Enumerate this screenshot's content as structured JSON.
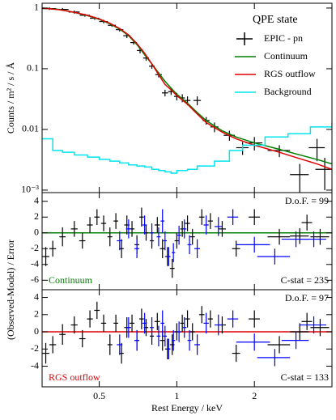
{
  "chart_data": [
    {
      "type": "spectrum",
      "title": "QPE state",
      "ylabel": "Counts / m² / s / Å",
      "xscale": "log",
      "yscale": "log",
      "xlim": [
        0.3,
        4.0
      ],
      "ylim": [
        0.00091,
        1.2
      ],
      "yticks": [
        {
          "value": 1,
          "label": "1"
        },
        {
          "value": 0.1,
          "label": "0.1"
        },
        {
          "value": 0.01,
          "label": "0.01"
        },
        {
          "value": 0.001,
          "label": "10⁻³"
        }
      ],
      "series": [
        {
          "name": "EPIC - pn",
          "kind": "errorbar",
          "color": "#000000",
          "x": [
            0.32,
            0.36,
            0.4,
            0.44,
            0.48,
            0.52,
            0.56,
            0.6,
            0.64,
            0.68,
            0.72,
            0.76,
            0.8,
            0.85,
            0.9,
            0.95,
            1.0,
            1.05,
            1.1,
            1.2,
            1.3,
            1.4,
            1.6,
            1.8,
            2.0,
            2.5,
            3.0,
            3.5,
            3.75
          ],
          "values": [
            0.98,
            0.95,
            0.86,
            0.76,
            0.68,
            0.6,
            0.52,
            0.44,
            0.35,
            0.27,
            0.2,
            0.15,
            0.11,
            0.08,
            0.04,
            0.042,
            0.035,
            0.033,
            0.03,
            0.03,
            0.014,
            0.011,
            0.008,
            0.005,
            0.006,
            0.0045,
            0.0018,
            0.005,
            0.0022
          ],
          "xerr": [
            0.02,
            0.02,
            0.02,
            0.02,
            0.02,
            0.02,
            0.02,
            0.02,
            0.02,
            0.02,
            0.02,
            0.02,
            0.02,
            0.025,
            0.025,
            0.025,
            0.025,
            0.025,
            0.03,
            0.04,
            0.04,
            0.05,
            0.08,
            0.1,
            0.15,
            0.25,
            0.25,
            0.25,
            0.3
          ],
          "yerr": [
            0.05,
            0.05,
            0.05,
            0.04,
            0.04,
            0.04,
            0.03,
            0.03,
            0.03,
            0.02,
            0.02,
            0.015,
            0.01,
            0.008,
            0.005,
            0.005,
            0.005,
            0.005,
            0.005,
            0.005,
            0.002,
            0.002,
            0.0015,
            0.0012,
            0.0015,
            0.001,
            0.0009,
            0.002,
            0.0012
          ]
        },
        {
          "name": "Continuum",
          "kind": "line",
          "color": "#008000",
          "x": [
            0.3,
            0.35,
            0.4,
            0.45,
            0.5,
            0.55,
            0.6,
            0.65,
            0.7,
            0.75,
            0.8,
            0.85,
            0.9,
            0.95,
            1.0,
            1.1,
            1.2,
            1.3,
            1.5,
            1.7,
            2.0,
            2.5,
            3.0,
            3.5,
            4.0
          ],
          "values": [
            1.0,
            0.95,
            0.85,
            0.75,
            0.65,
            0.55,
            0.45,
            0.35,
            0.25,
            0.17,
            0.12,
            0.085,
            0.062,
            0.048,
            0.038,
            0.027,
            0.019,
            0.014,
            0.0095,
            0.0075,
            0.006,
            0.0047,
            0.0038,
            0.0032,
            0.0027
          ]
        },
        {
          "name": "RGS outflow",
          "kind": "line",
          "color": "#e00000",
          "x": [
            0.3,
            0.35,
            0.4,
            0.45,
            0.5,
            0.55,
            0.6,
            0.65,
            0.7,
            0.75,
            0.8,
            0.85,
            0.9,
            0.95,
            1.0,
            1.1,
            1.2,
            1.3,
            1.5,
            1.7,
            2.0,
            2.5,
            3.0,
            3.5,
            4.0
          ],
          "values": [
            1.0,
            0.94,
            0.85,
            0.76,
            0.66,
            0.56,
            0.46,
            0.36,
            0.26,
            0.18,
            0.12,
            0.08,
            0.055,
            0.045,
            0.036,
            0.026,
            0.018,
            0.013,
            0.009,
            0.007,
            0.0055,
            0.0042,
            0.0033,
            0.0027,
            0.0022
          ]
        },
        {
          "name": "Background",
          "kind": "step",
          "color": "#00e5ee",
          "x": [
            0.3,
            0.33,
            0.36,
            0.4,
            0.45,
            0.5,
            0.55,
            0.6,
            0.65,
            0.7,
            0.75,
            0.8,
            0.85,
            0.9,
            0.95,
            1.0,
            1.1,
            1.2,
            1.4,
            1.6,
            1.8,
            2.2,
            2.7,
            3.3,
            4.0
          ],
          "values": [
            0.007,
            0.0045,
            0.0042,
            0.0038,
            0.0035,
            0.0032,
            0.003,
            0.0028,
            0.0026,
            0.0025,
            0.0024,
            0.0022,
            0.0021,
            0.002,
            0.0019,
            0.0021,
            0.0022,
            0.0025,
            0.003,
            0.0045,
            0.0055,
            0.0075,
            0.0085,
            0.011,
            0.013
          ]
        }
      ]
    },
    {
      "type": "residual",
      "ylabel": "(Observed-Model) / Error",
      "xscale": "log",
      "xlim": [
        0.3,
        4.0
      ],
      "ylim": [
        -7.2,
        5.1
      ],
      "yticks": [
        4,
        2,
        0,
        -2,
        -4,
        -6
      ],
      "line_color": "#008000",
      "label": "Continuum",
      "label_color": "#008000",
      "dof": "D.o.F. = 99",
      "cstat": "C-stat = 235",
      "series": [
        {
          "color": "#000000",
          "x": [
            0.31,
            0.33,
            0.36,
            0.4,
            0.43,
            0.46,
            0.49,
            0.52,
            0.55,
            0.58,
            0.61,
            0.64,
            0.67,
            0.7,
            0.73,
            0.76,
            0.8,
            0.84,
            0.88,
            0.92,
            0.96,
            1.0,
            1.05,
            1.1,
            1.15,
            1.25,
            1.35,
            1.5,
            1.7,
            2.0,
            2.5,
            3.0,
            3.2,
            3.6
          ],
          "values": [
            -3,
            -2,
            -0.5,
            0.5,
            -1,
            1,
            2,
            1.2,
            -0.5,
            1.5,
            -2,
            1,
            0.5,
            -1.5,
            2,
            0,
            -1,
            1,
            -2,
            -3,
            -4.5,
            -1,
            0.5,
            1.2,
            -0.5,
            2,
            1.5,
            0.5,
            -2,
            2,
            -0.5,
            -0.4,
            1.3,
            -0.5
          ],
          "err": [
            1.2,
            1,
            1.2,
            1,
            1,
            1,
            1,
            1,
            1.2,
            1,
            1.2,
            1.2,
            1,
            1.2,
            1.2,
            1,
            1,
            1,
            1.2,
            1.2,
            1.2,
            1,
            1,
            1,
            1,
            1,
            1,
            1,
            1,
            1,
            1,
            1,
            1,
            1
          ],
          "xerr": [
            0.01,
            0.01,
            0.01,
            0.012,
            0.012,
            0.012,
            0.012,
            0.012,
            0.012,
            0.012,
            0.012,
            0.015,
            0.015,
            0.015,
            0.015,
            0.015,
            0.015,
            0.02,
            0.02,
            0.02,
            0.02,
            0.02,
            0.02,
            0.025,
            0.025,
            0.03,
            0.03,
            0.05,
            0.06,
            0.1,
            0.25,
            0.25,
            0.15,
            0.3
          ]
        },
        {
          "color": "#0000ff",
          "x": [
            0.6,
            0.65,
            0.7,
            0.75,
            0.8,
            0.85,
            0.88,
            0.9,
            0.93,
            0.97,
            1.02,
            1.07,
            1.12,
            1.2,
            1.3,
            1.45,
            1.65,
            2.0,
            2.4,
            2.9,
            3.4
          ],
          "values": [
            -1,
            0.5,
            -2,
            1,
            0,
            -0.5,
            1.5,
            -1,
            -3,
            -2.5,
            -0.3,
            0.5,
            -1.5,
            -2,
            1,
            0.8,
            2,
            -1.5,
            -3,
            -0.8,
            -0.8
          ],
          "err": [
            1.2,
            1.2,
            1.2,
            1.2,
            1.2,
            1.2,
            1.5,
            1.2,
            1.2,
            1.2,
            1.2,
            1.2,
            1.2,
            1.2,
            1.2,
            1.2,
            1,
            1,
            1,
            1,
            1
          ],
          "xerr": [
            0.015,
            0.015,
            0.015,
            0.015,
            0.015,
            0.015,
            0.015,
            0.015,
            0.015,
            0.015,
            0.02,
            0.02,
            0.02,
            0.03,
            0.03,
            0.05,
            0.08,
            0.3,
            0.35,
            0.35,
            0.4
          ]
        }
      ]
    },
    {
      "type": "residual",
      "xlabel": "Rest Energy / keV",
      "xscale": "log",
      "xlim": [
        0.3,
        4.0
      ],
      "ylim": [
        -6.4,
        4.9
      ],
      "xticks": [
        0.5,
        1,
        2
      ],
      "yticks": [
        4,
        2,
        0,
        -2,
        -4
      ],
      "line_color": "#e00000",
      "label": "RGS outflow",
      "label_color": "#e00000",
      "dof": "D.o.F. = 97",
      "cstat": "C-stat = 133",
      "series": [
        {
          "color": "#000000",
          "x": [
            0.31,
            0.33,
            0.36,
            0.4,
            0.43,
            0.46,
            0.49,
            0.52,
            0.55,
            0.58,
            0.61,
            0.64,
            0.67,
            0.7,
            0.73,
            0.76,
            0.8,
            0.84,
            0.88,
            0.92,
            0.96,
            1.0,
            1.05,
            1.1,
            1.15,
            1.25,
            1.35,
            1.5,
            1.7,
            2.0,
            2.5,
            3.0,
            3.2,
            3.6
          ],
          "values": [
            -2.5,
            -1.5,
            -0.3,
            0.8,
            -0.8,
            1.5,
            2.5,
            1,
            -1.5,
            1,
            -2.5,
            0.5,
            1,
            -1,
            1.5,
            0.5,
            -0.5,
            1.2,
            -1,
            -2,
            -1.5,
            0,
            1,
            1.5,
            0,
            2,
            1.5,
            0.8,
            -2.5,
            1.5,
            -1.5,
            0,
            1.2,
            0.5
          ],
          "err": [
            1.2,
            1,
            1.2,
            1,
            1,
            1,
            1,
            1,
            1.2,
            1,
            1.2,
            1.2,
            1,
            1.2,
            1.2,
            1,
            1,
            1,
            1.2,
            1.2,
            1.2,
            1,
            1,
            1,
            1,
            1,
            1,
            1,
            1,
            1,
            1,
            1,
            1,
            1
          ],
          "xerr": [
            0.01,
            0.01,
            0.01,
            0.012,
            0.012,
            0.012,
            0.012,
            0.012,
            0.012,
            0.012,
            0.012,
            0.015,
            0.015,
            0.015,
            0.015,
            0.015,
            0.015,
            0.02,
            0.02,
            0.02,
            0.02,
            0.02,
            0.02,
            0.025,
            0.025,
            0.03,
            0.03,
            0.05,
            0.06,
            0.1,
            0.25,
            0.25,
            0.15,
            0.3
          ]
        },
        {
          "color": "#0000ff",
          "x": [
            0.6,
            0.65,
            0.7,
            0.75,
            0.8,
            0.85,
            0.88,
            0.9,
            0.93,
            0.97,
            1.02,
            1.07,
            1.12,
            1.2,
            1.3,
            1.45,
            1.65,
            2.0,
            2.4,
            2.9,
            3.4
          ],
          "values": [
            -1.5,
            0.5,
            -1,
            1,
            0.5,
            -0.5,
            1,
            -0.5,
            -2,
            -1,
            0,
            0.5,
            -1,
            -1.5,
            1,
            0.8,
            1.5,
            -1.2,
            -3,
            -1,
            0.8
          ],
          "err": [
            1.2,
            1.2,
            1.2,
            1.2,
            1.2,
            1.2,
            1.5,
            1.2,
            1.2,
            1.2,
            1.2,
            1.2,
            1.2,
            1.2,
            1.2,
            1.2,
            1,
            1,
            1,
            1,
            1
          ],
          "xerr": [
            0.015,
            0.015,
            0.015,
            0.015,
            0.015,
            0.015,
            0.015,
            0.015,
            0.015,
            0.015,
            0.02,
            0.02,
            0.02,
            0.03,
            0.03,
            0.05,
            0.08,
            0.3,
            0.35,
            0.35,
            0.4
          ]
        }
      ]
    }
  ]
}
